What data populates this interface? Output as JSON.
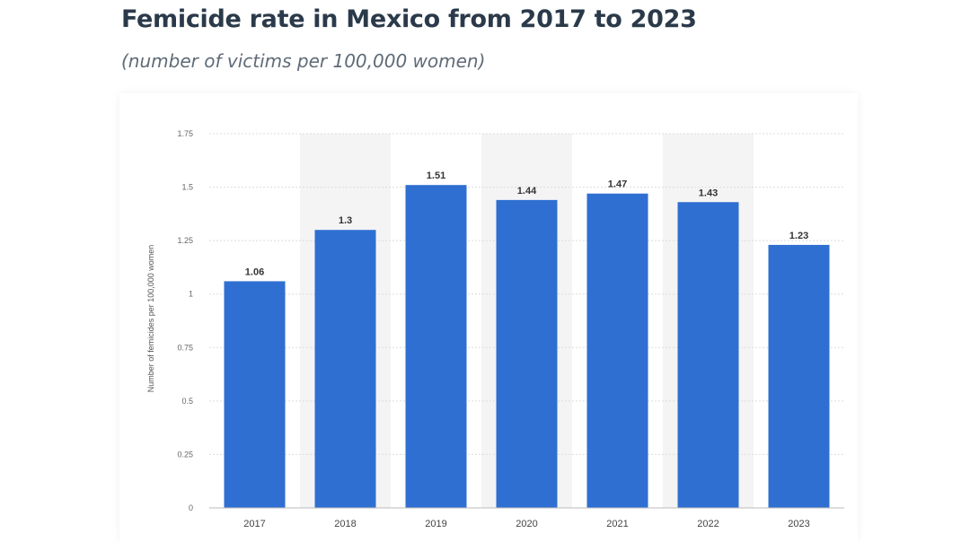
{
  "chart_data": {
    "type": "bar",
    "title": "Femicide rate in Mexico from 2017 to 2023",
    "subtitle": "(number of victims per 100,000 women)",
    "ylabel": "Number of femicides per 100,000 women",
    "xlabel": "",
    "categories": [
      "2017",
      "2018",
      "2019",
      "2020",
      "2021",
      "2022",
      "2023"
    ],
    "values": [
      1.06,
      1.3,
      1.51,
      1.44,
      1.47,
      1.43,
      1.23
    ],
    "value_labels": [
      "1.06",
      "1.3",
      "1.51",
      "1.44",
      "1.47",
      "1.43",
      "1.23"
    ],
    "ylim": [
      0,
      1.75
    ],
    "yticks": [
      0,
      0.25,
      0.5,
      0.75,
      1,
      1.25,
      1.5,
      1.75
    ],
    "ytick_labels": [
      "0",
      "0.25",
      "0.5",
      "0.75",
      "1",
      "1.25",
      "1.5",
      "1.75"
    ],
    "grid": true,
    "bar_color": "#2f6fd2"
  }
}
